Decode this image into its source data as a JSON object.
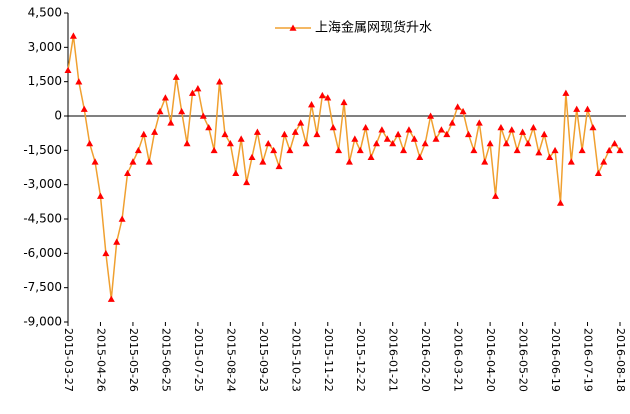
{
  "chart_data": {
    "type": "line",
    "categories": [
      "2015-03-27",
      null,
      null,
      null,
      null,
      null,
      "2015-04-26",
      null,
      null,
      null,
      null,
      null,
      "2015-05-26",
      null,
      null,
      null,
      null,
      null,
      "2015-06-25",
      null,
      null,
      null,
      null,
      null,
      "2015-07-25",
      null,
      null,
      null,
      null,
      null,
      "2015-08-24",
      null,
      null,
      null,
      null,
      null,
      "2015-09-23",
      null,
      null,
      null,
      null,
      null,
      "2015-10-23",
      null,
      null,
      null,
      null,
      null,
      "2015-11-22",
      null,
      null,
      null,
      null,
      null,
      "2015-12-22",
      null,
      null,
      null,
      null,
      null,
      "2016-01-21",
      null,
      null,
      null,
      null,
      null,
      "2016-02-20",
      null,
      null,
      null,
      null,
      null,
      "2016-03-21",
      null,
      null,
      null,
      null,
      null,
      "2016-04-20",
      null,
      null,
      null,
      null,
      null,
      "2016-05-20",
      null,
      null,
      null,
      null,
      null,
      "2016-06-19",
      null,
      null,
      null,
      null,
      null,
      "2016-07-19",
      null,
      null,
      null,
      null,
      null,
      "2016-08-18"
    ],
    "series": [
      {
        "name": "上海金属网现货升水",
        "color": "#f0a030",
        "marker_color": "#ff0000",
        "values": [
          2000,
          3500,
          1500,
          300,
          -1200,
          -2000,
          -3500,
          -6000,
          -8000,
          -5500,
          -4500,
          -2500,
          -2000,
          -1500,
          -800,
          -2000,
          -700,
          200,
          800,
          -300,
          1700,
          200,
          -1200,
          1000,
          1200,
          0,
          -500,
          -1500,
          1500,
          -800,
          -1200,
          -2500,
          -1000,
          -2900,
          -1800,
          -700,
          -2000,
          -1200,
          -1500,
          -2200,
          -800,
          -1500,
          -700,
          -300,
          -1200,
          500,
          -800,
          900,
          800,
          -500,
          -1500,
          600,
          -2000,
          -1000,
          -1500,
          -500,
          -1800,
          -1200,
          -600,
          -1000,
          -1200,
          -800,
          -1500,
          -600,
          -1000,
          -1800,
          -1200,
          0,
          -1000,
          -600,
          -800,
          -300,
          400,
          200,
          -800,
          -1500,
          -300,
          -2000,
          -1200,
          -3500,
          -500,
          -1200,
          -600,
          -1500,
          -700,
          -1200,
          -500,
          -1600,
          -800,
          -1800,
          -1500,
          -3800,
          1000,
          -2000,
          300,
          -1500,
          300,
          -500,
          -2500,
          -2000,
          -1500,
          -1200,
          -1500
        ]
      }
    ],
    "ylim": [
      -9000,
      4500
    ],
    "yticks": [
      {
        "value": -9000,
        "label": "-9,000"
      },
      {
        "value": -7500,
        "label": "-7,500"
      },
      {
        "value": -6000,
        "label": "-6,000"
      },
      {
        "value": -4500,
        "label": "-4,500"
      },
      {
        "value": -3000,
        "label": "-3,000"
      },
      {
        "value": -1500,
        "label": "-1,500"
      },
      0,
      {
        "value": 1500,
        "label": "1,500"
      },
      {
        "value": 3000,
        "label": "3,000"
      },
      {
        "value": 4500,
        "label": "4,500"
      }
    ],
    "grid": false,
    "legend": "top"
  }
}
